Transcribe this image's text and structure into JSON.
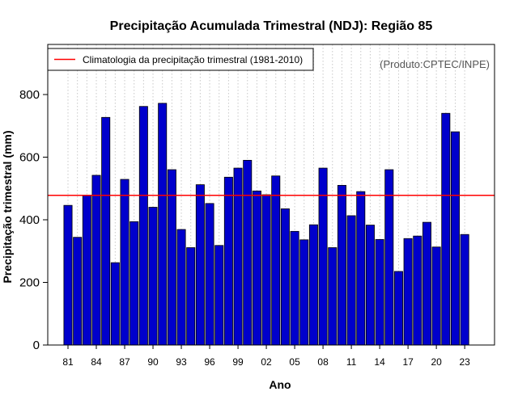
{
  "chart_data": {
    "type": "bar",
    "title": "Precipitação Acumulada Trimestral (NDJ): Região 85",
    "xlabel": "Ano",
    "ylabel": "Precipitação trimestral (mm)",
    "source_note": "(Produto:CPTEC/INPE)",
    "ylim": [
      0,
      960
    ],
    "yticks": [
      0,
      200,
      400,
      600,
      800
    ],
    "grid": "vertical dotted",
    "bar_color": "#0000CC",
    "climatology_color": "#FF0000",
    "legend": {
      "position": "top-left",
      "label": "Climatologia da precipitação trimestral (1981-2010)"
    },
    "climatology": 478,
    "categories": [
      "81",
      "82",
      "83",
      "84",
      "85",
      "86",
      "87",
      "88",
      "89",
      "90",
      "91",
      "92",
      "93",
      "94",
      "95",
      "96",
      "97",
      "98",
      "99",
      "00",
      "01",
      "02",
      "03",
      "04",
      "05",
      "06",
      "07",
      "08",
      "09",
      "10",
      "11",
      "12",
      "13",
      "14",
      "15",
      "16",
      "17",
      "18",
      "19",
      "20",
      "21",
      "22",
      "23"
    ],
    "xtick_labels": [
      "81",
      "84",
      "87",
      "90",
      "93",
      "96",
      "99",
      "02",
      "05",
      "08",
      "11",
      "14",
      "17",
      "20",
      "23"
    ],
    "xtick_indices": [
      0,
      3,
      6,
      9,
      12,
      15,
      18,
      21,
      24,
      27,
      30,
      33,
      36,
      39,
      42
    ],
    "values": [
      446,
      344,
      478,
      542,
      727,
      263,
      529,
      394,
      762,
      440,
      772,
      560,
      369,
      311,
      512,
      452,
      318,
      536,
      565,
      590,
      492,
      480,
      540,
      435,
      363,
      336,
      384,
      565,
      311,
      510,
      413,
      490,
      383,
      337,
      560,
      235,
      340,
      348,
      392,
      313,
      740,
      681,
      353
    ]
  }
}
